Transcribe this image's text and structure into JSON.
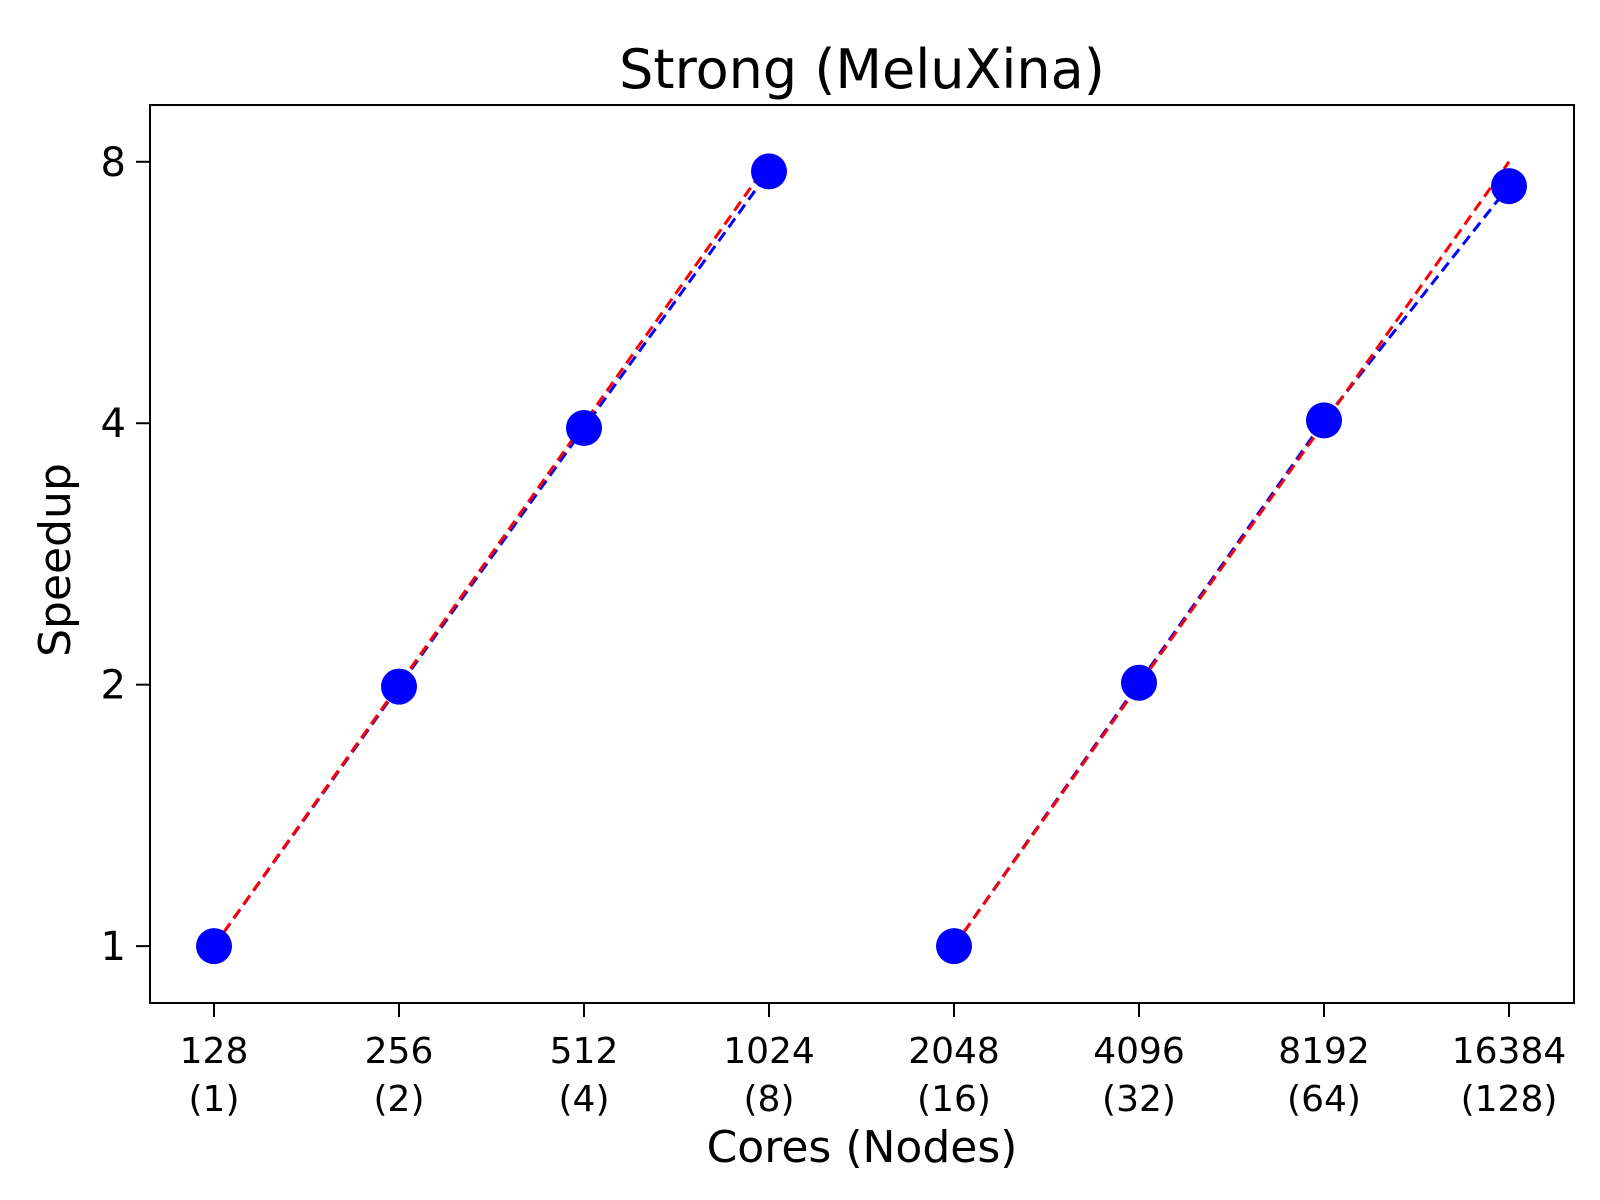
{
  "chart_data": {
    "type": "scatter",
    "title": "Strong (MeluXina)",
    "xlabel": "Cores (Nodes)",
    "ylabel": "Speedup",
    "y_scale": "log2",
    "ylim": [
      0.86,
      9.3
    ],
    "y_ticks": [
      1,
      2,
      4,
      8
    ],
    "y_tick_labels": [
      "1",
      "2",
      "4",
      "8"
    ],
    "categories": [
      {
        "cores": "128",
        "nodes": "(1)"
      },
      {
        "cores": "256",
        "nodes": "(2)"
      },
      {
        "cores": "512",
        "nodes": "(4)"
      },
      {
        "cores": "1024",
        "nodes": "(8)"
      },
      {
        "cores": "2048",
        "nodes": "(16)"
      },
      {
        "cores": "4096",
        "nodes": "(32)"
      },
      {
        "cores": "8192",
        "nodes": "(64)"
      },
      {
        "cores": "16384",
        "nodes": "(128)"
      }
    ],
    "groups": [
      {
        "categories": [
          "128",
          "256",
          "512",
          "1024"
        ],
        "measured": [
          1.0,
          1.99,
          3.95,
          7.8
        ],
        "ideal": [
          1,
          2,
          4,
          8
        ]
      },
      {
        "categories": [
          "2048",
          "4096",
          "8192",
          "16384"
        ],
        "measured": [
          1.0,
          2.01,
          4.03,
          7.5
        ],
        "ideal": [
          1,
          2,
          4,
          8
        ]
      }
    ],
    "grid": false,
    "colors": {
      "measured_marker": "#0000ff",
      "measured_line": "#0000ff",
      "ideal_line": "#ff0000",
      "axis": "#000000"
    }
  }
}
